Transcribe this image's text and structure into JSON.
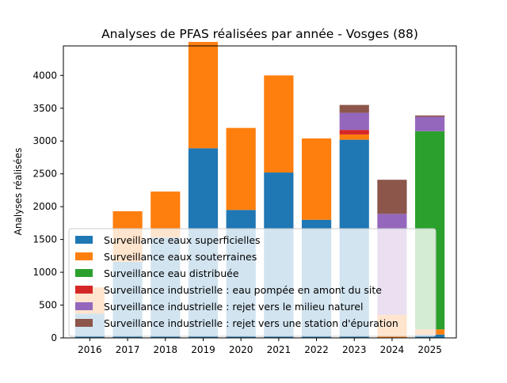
{
  "chart_data": {
    "type": "bar",
    "stacked": true,
    "title": "Analyses de PFAS réalisées par année - Vosges (88)",
    "xlabel": "",
    "ylabel": "Analyses réalisées",
    "ylim": [
      0,
      4450
    ],
    "yticks": [
      0,
      500,
      1000,
      1500,
      2000,
      2500,
      3000,
      3500,
      4000
    ],
    "legend_position": "lower-left",
    "categories": [
      "2016",
      "2017",
      "2018",
      "2019",
      "2020",
      "2021",
      "2022",
      "2023",
      "2024",
      "2025"
    ],
    "series": [
      {
        "name": "Surveillance eaux superficielles",
        "color": "#1f77b4",
        "values": [
          370,
          1160,
          1530,
          2890,
          1950,
          2520,
          1800,
          3020,
          0,
          50
        ]
      },
      {
        "name": "Surveillance eaux souterraines",
        "color": "#ff7f0e",
        "values": [
          400,
          770,
          700,
          1620,
          1250,
          1480,
          1240,
          80,
          350,
          80
        ]
      },
      {
        "name": "Surveillance eau distribuée",
        "color": "#2ca02c",
        "values": [
          0,
          0,
          0,
          0,
          0,
          0,
          0,
          0,
          0,
          3020
        ]
      },
      {
        "name": "Surveillance industrielle : eau pompée en amont du site",
        "color": "#d62728",
        "values": [
          0,
          0,
          0,
          0,
          0,
          0,
          0,
          70,
          0,
          0
        ]
      },
      {
        "name": "Surveillance industrielle : rejet vers le milieu naturel",
        "color": "#9467bd",
        "values": [
          0,
          0,
          0,
          0,
          0,
          0,
          0,
          260,
          1540,
          220
        ]
      },
      {
        "name": "Surveillance industrielle : rejet vers une station d'épuration",
        "color": "#8c564b",
        "values": [
          0,
          0,
          0,
          0,
          0,
          0,
          0,
          120,
          520,
          20
        ]
      }
    ]
  }
}
